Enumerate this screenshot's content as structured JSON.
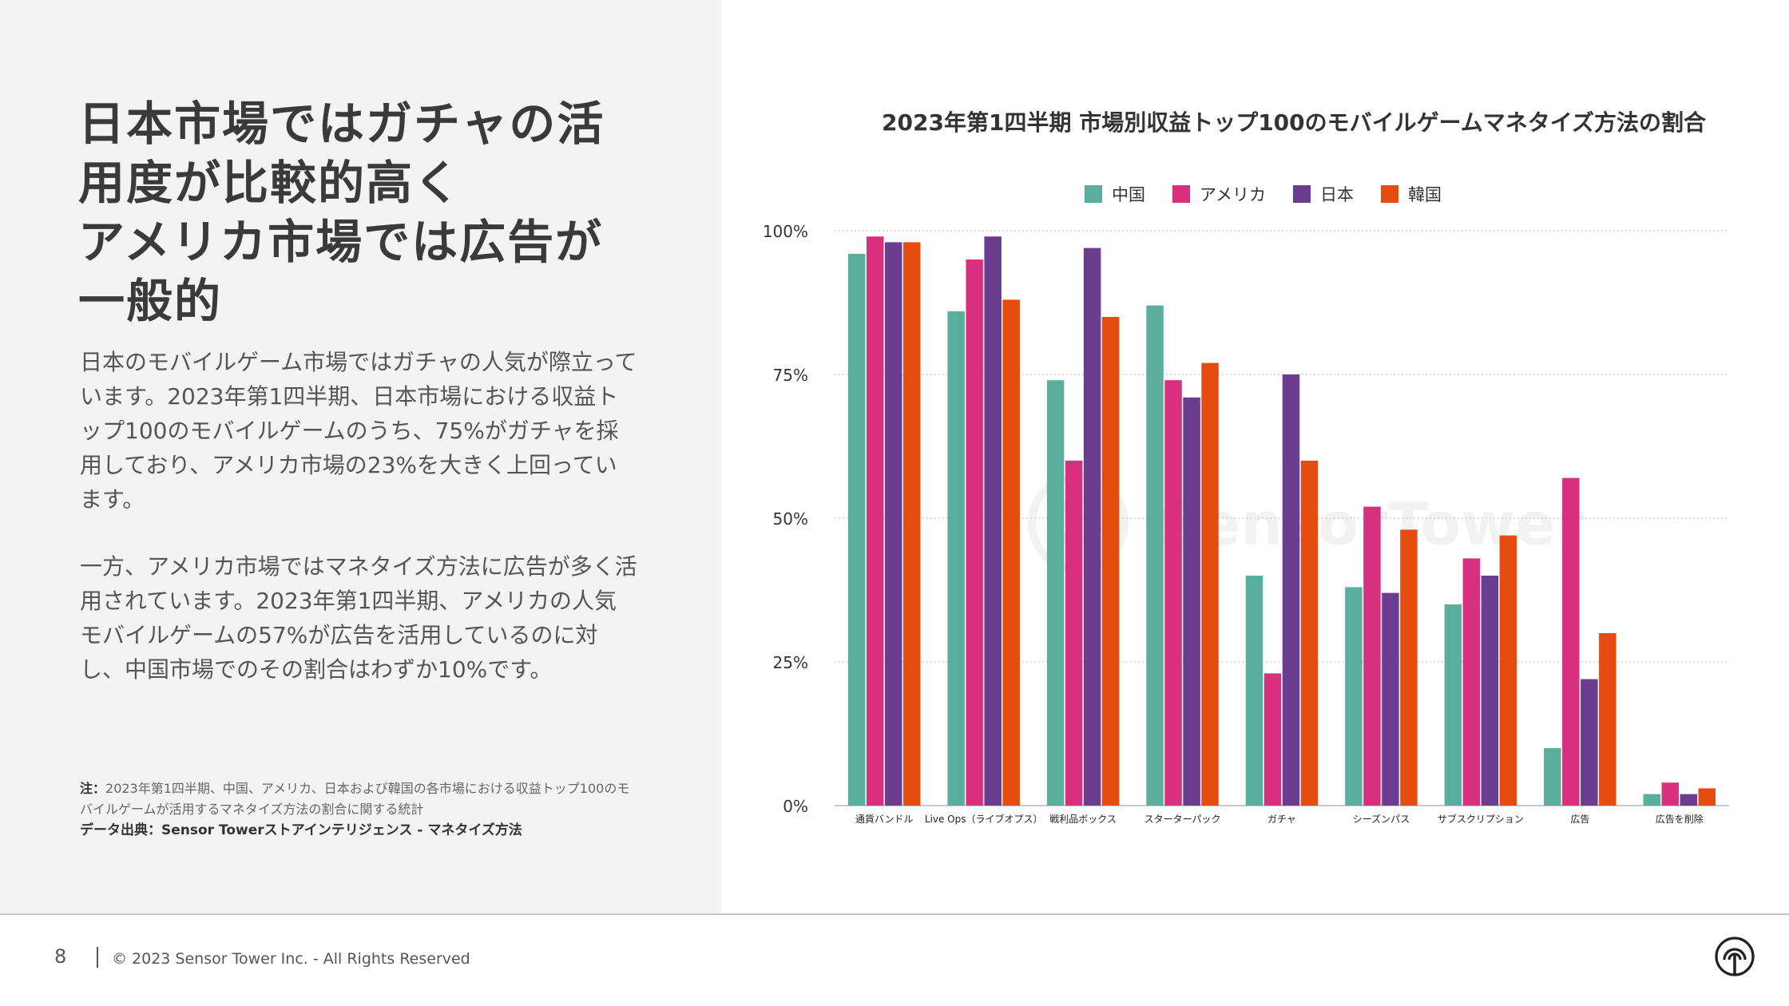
{
  "headline": [
    "日本市場ではガチャの活",
    "用度が比較的高く",
    "アメリカ市場では広告が",
    "一般的"
  ],
  "paragraph1": "日本のモバイルゲーム市場ではガチャの人気が際立っています。2023年第1四半期、日本市場における収益トップ100のモバイルゲームのうち、75%がガチャを採用しており、アメリカ市場の23%を大きく上回っています。",
  "paragraph2": "一方、アメリカ市場ではマネタイズ方法に広告が多く活用されています。2023年第1四半期、アメリカの人気モバイルゲームの57%が広告を活用しているのに対し、中国市場でのその割合はわずか10%です。",
  "note": {
    "label": "注：",
    "text": "2023年第1四半期、中国、アメリカ、日本および韓国の各市場における収益トップ100のモバイルゲームが活用するマネタイズ方法の割合に関する統計",
    "source": "データ出典：Sensor Towerストアインテリジェンス - マネタイズ方法"
  },
  "footer": {
    "page_number": "8",
    "copyright": "© 2023 Sensor Tower Inc. - All Rights Reserved"
  },
  "logo_icon": "sensor-tower-logo-icon",
  "watermark": "SensorTower",
  "colors": {
    "china": "#5aae9e",
    "usa": "#d8307e",
    "japan": "#6b3d8e",
    "korea": "#e54d10"
  },
  "chart_data": {
    "type": "bar",
    "title": "2023年第1四半期 市場別収益トップ100のモバイルゲームマネタイズ方法の割合",
    "xlabel": "",
    "ylabel": "",
    "ylim": [
      0,
      100
    ],
    "y_ticks": [
      "0%",
      "25%",
      "50%",
      "75%",
      "100%"
    ],
    "y_tick_values": [
      0,
      25,
      50,
      75,
      100
    ],
    "grid": true,
    "legend_position": "top-center",
    "categories": [
      "通貨バンドル",
      "Live Ops（ライブオプス）",
      "戦利品ボックス",
      "スターターパック",
      "ガチャ",
      "シーズンパス",
      "サブスクリプション",
      "広告",
      "広告を削除"
    ],
    "series": [
      {
        "name": "中国",
        "color": "#5aae9e",
        "values": [
          96,
          86,
          74,
          87,
          40,
          38,
          35,
          10,
          2
        ]
      },
      {
        "name": "アメリカ",
        "color": "#d8307e",
        "values": [
          99,
          95,
          60,
          74,
          23,
          52,
          43,
          57,
          4
        ]
      },
      {
        "name": "日本",
        "color": "#6b3d8e",
        "values": [
          98,
          99,
          97,
          71,
          75,
          37,
          40,
          22,
          2
        ]
      },
      {
        "name": "韓国",
        "color": "#e54d10",
        "values": [
          98,
          88,
          85,
          77,
          60,
          48,
          47,
          30,
          3
        ]
      }
    ]
  }
}
